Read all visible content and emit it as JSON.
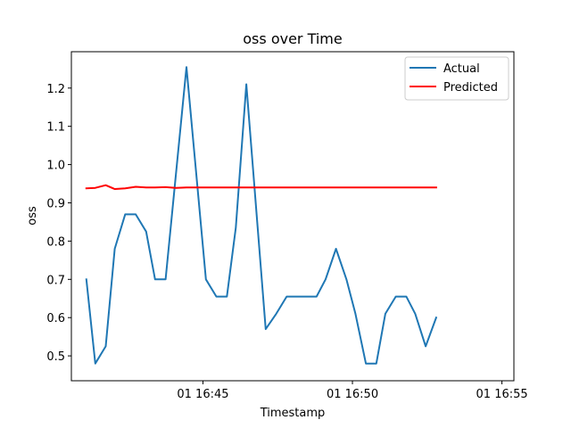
{
  "chart_data": {
    "type": "line",
    "title": "oss over Time",
    "xlabel": "Timestamp",
    "ylabel": "oss",
    "x_ticks": [
      {
        "label": "01 16:45",
        "x": 45
      },
      {
        "label": "01 16:50",
        "x": 50
      },
      {
        "label": "01 16:55",
        "x": 55
      }
    ],
    "xlim": [
      40.6,
      55.4
    ],
    "ylim": [
      0.435,
      1.295
    ],
    "y_ticks": [
      0.5,
      0.6,
      0.7,
      0.8,
      0.9,
      1.0,
      1.1,
      1.2
    ],
    "y_tick_labels": [
      "0.5",
      "0.6",
      "0.7",
      "0.8",
      "0.9",
      "1.0",
      "1.1",
      "1.2"
    ],
    "legend": {
      "placement": "top-right"
    },
    "grid": false,
    "series": [
      {
        "name": "Actual",
        "color": "#1f77b4",
        "points": [
          [
            41.1,
            0.7
          ],
          [
            41.4,
            0.48
          ],
          [
            41.75,
            0.525
          ],
          [
            42.05,
            0.78
          ],
          [
            42.4,
            0.87
          ],
          [
            42.75,
            0.87
          ],
          [
            43.1,
            0.825
          ],
          [
            43.4,
            0.7
          ],
          [
            43.75,
            0.7
          ],
          [
            44.45,
            1.255
          ],
          [
            45.1,
            0.7
          ],
          [
            45.45,
            0.655
          ],
          [
            45.8,
            0.655
          ],
          [
            46.1,
            0.835
          ],
          [
            46.45,
            1.21
          ],
          [
            47.1,
            0.57
          ],
          [
            47.45,
            0.61
          ],
          [
            47.8,
            0.655
          ],
          [
            48.1,
            0.655
          ],
          [
            48.45,
            0.655
          ],
          [
            48.8,
            0.655
          ],
          [
            49.1,
            0.7
          ],
          [
            49.45,
            0.78
          ],
          [
            49.8,
            0.7
          ],
          [
            50.1,
            0.61
          ],
          [
            50.45,
            0.48
          ],
          [
            50.8,
            0.48
          ],
          [
            51.1,
            0.61
          ],
          [
            51.45,
            0.655
          ],
          [
            51.8,
            0.655
          ],
          [
            52.1,
            0.61
          ],
          [
            52.45,
            0.525
          ],
          [
            52.8,
            0.6
          ]
        ]
      },
      {
        "name": "Predicted",
        "color": "#ff0000",
        "points": [
          [
            41.1,
            0.938
          ],
          [
            41.4,
            0.939
          ],
          [
            41.75,
            0.946
          ],
          [
            42.05,
            0.936
          ],
          [
            42.4,
            0.938
          ],
          [
            42.75,
            0.942
          ],
          [
            43.1,
            0.94
          ],
          [
            43.4,
            0.94
          ],
          [
            43.75,
            0.941
          ],
          [
            44.1,
            0.939
          ],
          [
            44.45,
            0.94
          ],
          [
            44.8,
            0.94
          ],
          [
            45.1,
            0.94
          ],
          [
            45.8,
            0.94
          ],
          [
            46.45,
            0.94
          ],
          [
            47.45,
            0.94
          ],
          [
            48.45,
            0.94
          ],
          [
            49.45,
            0.94
          ],
          [
            50.45,
            0.94
          ],
          [
            51.45,
            0.94
          ],
          [
            52.8,
            0.94
          ]
        ]
      }
    ]
  }
}
